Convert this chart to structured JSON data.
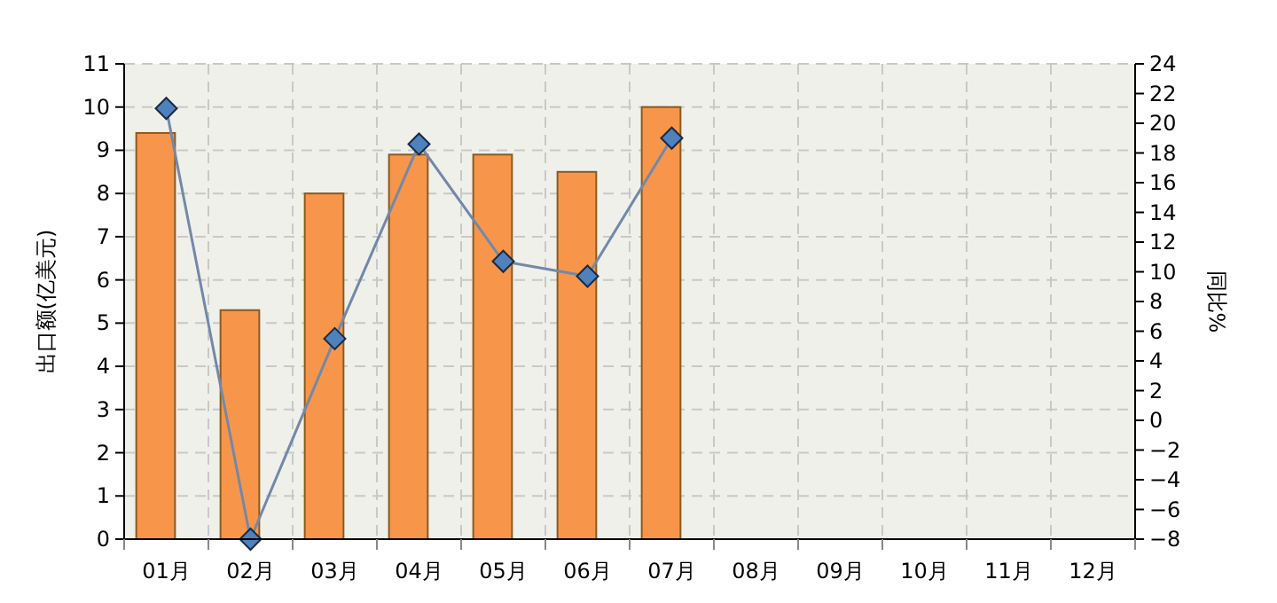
{
  "chart_data": {
    "type": "bar",
    "categories": [
      "01月",
      "02月",
      "03月",
      "04月",
      "05月",
      "06月",
      "07月",
      "08月",
      "09月",
      "10月",
      "11月",
      "12月"
    ],
    "series": [
      {
        "color": "#f7964a",
        "values": [
          9.4,
          5.3,
          8.0,
          8.9,
          8.9,
          8.5,
          10.0,
          null,
          null,
          null,
          null,
          null
        ]
      },
      {
        "type": "line",
        "axis": "y2",
        "color": "#7388a8",
        "values": [
          21.0,
          -8.0,
          5.5,
          18.6,
          10.7,
          9.7,
          19.0,
          null,
          null,
          null,
          null,
          null
        ]
      }
    ],
    "ylabel": "出口额(亿美元)",
    "y2label": "同比%",
    "ylim": [
      0,
      11
    ],
    "yticks": [
      0,
      1,
      2,
      3,
      4,
      5,
      6,
      7,
      8,
      9,
      10,
      11
    ],
    "y2lim": [
      -8,
      24
    ],
    "y2ticks": [
      -8,
      -6,
      -4,
      -2,
      0,
      2,
      4,
      6,
      8,
      10,
      12,
      14,
      16,
      18,
      20,
      22,
      24
    ],
    "grid": true,
    "marker": "diamond"
  }
}
